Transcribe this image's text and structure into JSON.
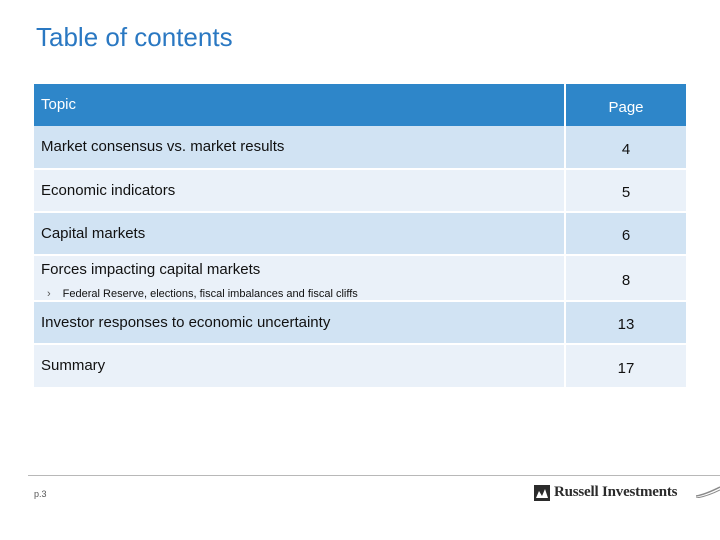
{
  "slide": {
    "title": "Table of contents",
    "page_number": "p.3"
  },
  "table": {
    "header": {
      "topic": "Topic",
      "page": "Page"
    },
    "rows": [
      {
        "topic": "Market consensus vs. market results",
        "page": "4"
      },
      {
        "topic": "Economic indicators",
        "page": "5"
      },
      {
        "topic": "Capital markets",
        "page": "6"
      },
      {
        "topic": "Forces impacting capital markets",
        "subtopic": "Federal Reserve, elections, fiscal imbalances and fiscal cliffs",
        "page": "8"
      },
      {
        "topic": "Investor responses to economic uncertainty",
        "page": "13"
      },
      {
        "topic": "Summary",
        "page": "17"
      }
    ]
  },
  "footer": {
    "brand": "Russell Investments",
    "logo_icon": "russell-logo-icon",
    "bullet_glyph": "›"
  },
  "colors": {
    "title": "#2a78c2",
    "header_bg": "#2e86c9",
    "row_dark": "#d1e3f3",
    "row_light": "#eaf1f9"
  }
}
